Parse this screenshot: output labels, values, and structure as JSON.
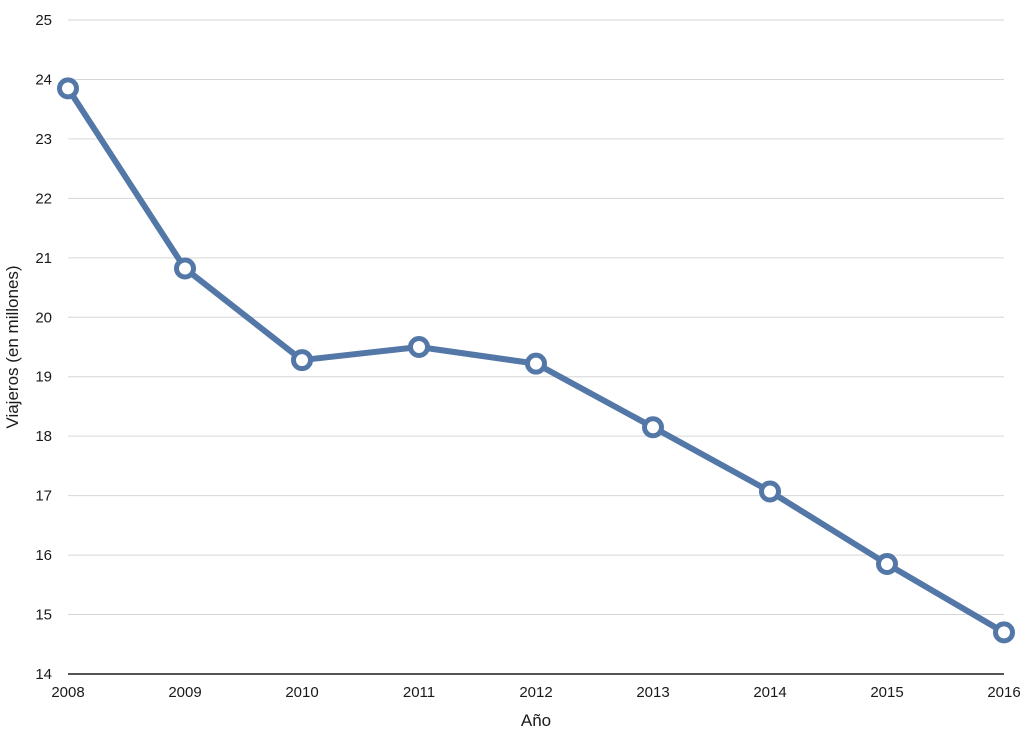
{
  "chart_data": {
    "type": "line",
    "title": "",
    "xlabel": "Año",
    "ylabel": "Viajeros (en millones)",
    "x": [
      "2008",
      "2009",
      "2010",
      "2011",
      "2012",
      "2013",
      "2014",
      "2015",
      "2016"
    ],
    "series": [
      {
        "values": [
          23.85,
          20.82,
          19.28,
          19.5,
          19.22,
          18.15,
          17.07,
          15.85,
          14.7
        ],
        "color": "#5377a6"
      }
    ],
    "ylim": [
      14,
      25
    ],
    "yticks": [
      "14",
      "15",
      "16",
      "17",
      "18",
      "19",
      "20",
      "21",
      "22",
      "23",
      "24",
      "25"
    ],
    "grid": true,
    "legend": "none",
    "marker": "hollow-circle"
  }
}
